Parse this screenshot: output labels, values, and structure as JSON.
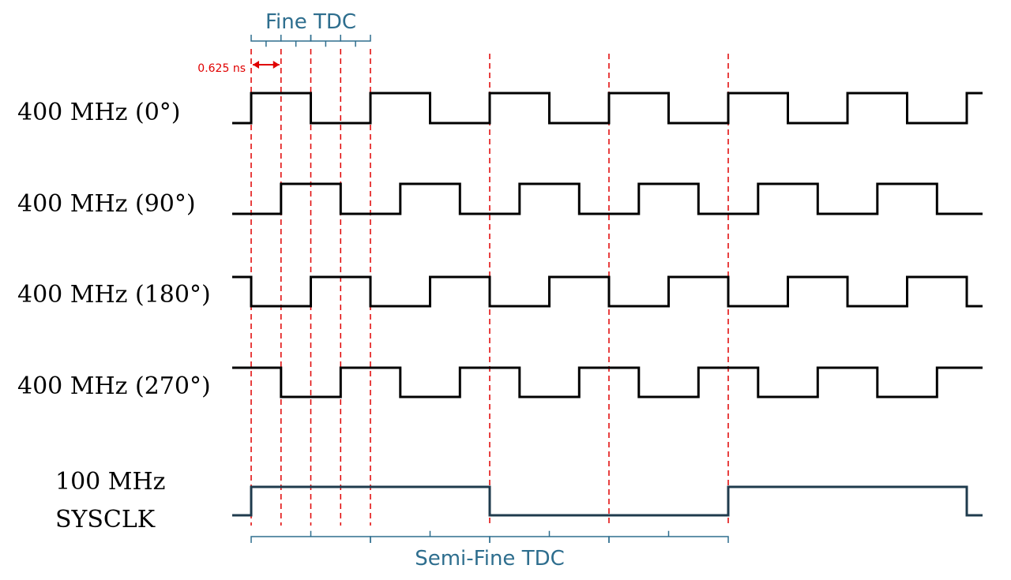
{
  "colors": {
    "waveform": "#000000",
    "sysclk": "#1f3b4d",
    "guide": "#e00000",
    "bracket": "#2e6e8e",
    "annotation": "#e00000"
  },
  "signals": [
    {
      "label": "400 MHz (0°)",
      "label_lines": [
        "400 MHz (0°)"
      ],
      "phase_deg": 0,
      "freq_mhz": 400
    },
    {
      "label": "400 MHz (90°)",
      "label_lines": [
        "400 MHz (90°)"
      ],
      "phase_deg": 90,
      "freq_mhz": 400
    },
    {
      "label": "400 MHz (180°)",
      "label_lines": [
        "400 MHz (180°)"
      ],
      "phase_deg": 180,
      "freq_mhz": 400
    },
    {
      "label": "400 MHz (270°)",
      "label_lines": [
        "400 MHz (270°)"
      ],
      "phase_deg": 270,
      "freq_mhz": 400
    },
    {
      "label": "100 MHz SYSCLK",
      "label_lines": [
        "100 MHz",
        "SYSCLK"
      ],
      "phase_deg": 0,
      "freq_mhz": 100
    }
  ],
  "brackets": {
    "fine": {
      "label": "Fine TDC",
      "segments": 4
    },
    "semi_fine": {
      "label": "Semi-Fine TDC",
      "segments": 4
    }
  },
  "annotation": {
    "label": "0.625 ns"
  }
}
